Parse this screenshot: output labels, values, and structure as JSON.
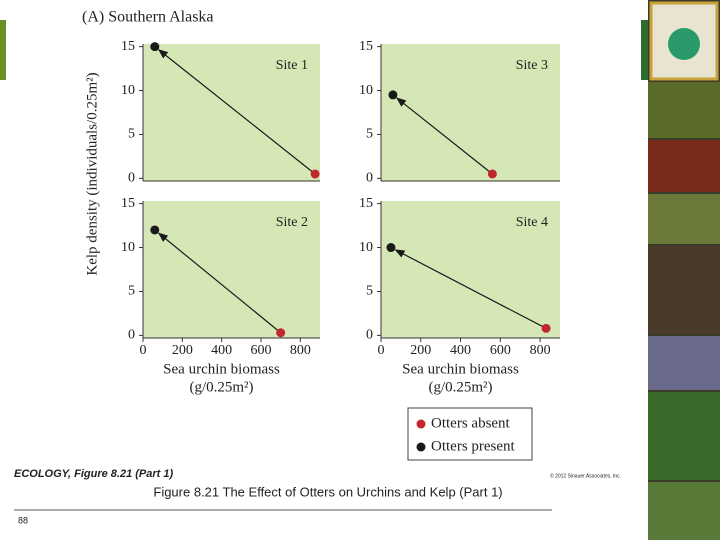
{
  "figure": {
    "title": "(A) Southern Alaska",
    "y_axis_label": "Kelp density (individuals/0.25m²)",
    "x_axis_label": [
      "Sea urchin biomass",
      "(g/0.25m²)"
    ]
  },
  "chart_data": [
    {
      "type": "scatter",
      "title": "Site 1",
      "xlim": [
        0,
        900
      ],
      "ylim": [
        -0.3,
        15.3
      ],
      "yticks": [
        0,
        5,
        10,
        15
      ],
      "series": [
        {
          "name": "Otters absent",
          "color": "#c0282d",
          "x": [
            875
          ],
          "values": [
            0.5
          ]
        },
        {
          "name": "Otters present",
          "color": "#1a1a1a",
          "x": [
            60
          ],
          "values": [
            15
          ]
        }
      ]
    },
    {
      "type": "scatter",
      "title": "Site 3",
      "xlim": [
        0,
        900
      ],
      "ylim": [
        -0.3,
        15.3
      ],
      "yticks": [
        0,
        5,
        10,
        15
      ],
      "series": [
        {
          "color": "#c0282d",
          "x": [
            560
          ],
          "values": [
            0.5
          ]
        },
        {
          "color": "#1a1a1a",
          "x": [
            60
          ],
          "values": [
            9.5
          ]
        }
      ]
    },
    {
      "type": "scatter",
      "title": "Site 2",
      "xlim": [
        0,
        900
      ],
      "ylim": [
        -0.3,
        15.3
      ],
      "yticks": [
        0,
        5,
        10,
        15
      ],
      "xticks": [
        0,
        200,
        400,
        600,
        800
      ],
      "series": [
        {
          "color": "#c0282d",
          "x": [
            700
          ],
          "values": [
            0.3
          ]
        },
        {
          "color": "#1a1a1a",
          "x": [
            60
          ],
          "values": [
            12
          ]
        }
      ]
    },
    {
      "type": "scatter",
      "title": "Site 4",
      "xlim": [
        0,
        900
      ],
      "ylim": [
        -0.3,
        15.3
      ],
      "yticks": [
        0,
        5,
        10,
        15
      ],
      "xticks": [
        0,
        200,
        400,
        600,
        800
      ],
      "series": [
        {
          "color": "#c0282d",
          "x": [
            830
          ],
          "values": [
            0.8
          ]
        },
        {
          "color": "#1a1a1a",
          "x": [
            50
          ],
          "values": [
            10
          ]
        }
      ]
    }
  ],
  "slide": {
    "source": "ECOLOGY, Figure 8.21 (Part 1)",
    "copyright": "© 2012 Sinauer Associates, Inc.",
    "caption": "Figure 8.21 The Effect of Otters on Urchins and Kelp (Part 1)",
    "page_number": "88"
  }
}
